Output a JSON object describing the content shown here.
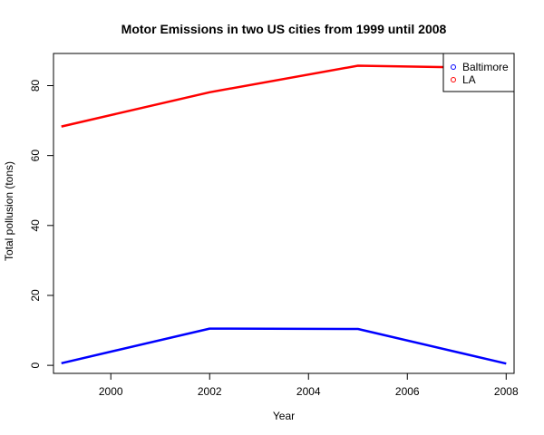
{
  "chart_data": {
    "type": "line",
    "title": "Motor Emissions in two US cities from 1999 until 2008",
    "xlabel": "Year",
    "ylabel": "Total pollusion (tons)",
    "x": [
      1999,
      2002,
      2005,
      2008
    ],
    "x_ticks": [
      2000,
      2002,
      2004,
      2006,
      2008
    ],
    "y_ticks": [
      0,
      20,
      40,
      60,
      80
    ],
    "xlim": [
      1998.84,
      2008.16
    ],
    "ylim": [
      -2.3,
      89.2
    ],
    "grid": false,
    "legend_position": "top-right",
    "series": [
      {
        "name": "Baltimore",
        "color": "#0000FF",
        "values": [
          0.6,
          10.5,
          10.4,
          0.5
        ]
      },
      {
        "name": "LA",
        "color": "#FF0000",
        "values": [
          68.3,
          78.1,
          85.7,
          85.0
        ]
      }
    ]
  }
}
